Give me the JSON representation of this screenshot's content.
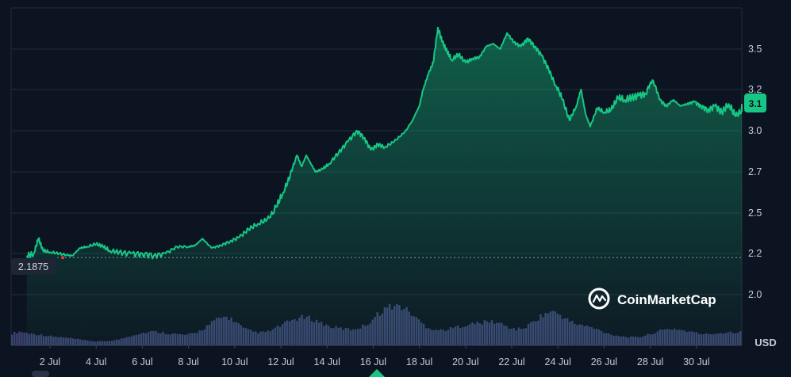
{
  "chart_data": {
    "type": "area",
    "currency_label": "USD",
    "brand": "CoinMarketCap",
    "start_price_label": "2.1875",
    "current_price_label": "3.1",
    "y_ticks": [
      "3.5",
      "3.2",
      "3.0",
      "2.7",
      "2.5",
      "2.2",
      "2.0"
    ],
    "x_ticks": [
      "2 Jul",
      "4 Jul",
      "6 Jul",
      "8 Jul",
      "10 Jul",
      "12 Jul",
      "14 Jul",
      "16 Jul",
      "18 Jul",
      "20 Jul",
      "22 Jul",
      "24 Jul",
      "26 Jul",
      "28 Jul",
      "30 Jul"
    ],
    "ylim": [
      1.8,
      3.75
    ],
    "xlim": [
      0,
      31.2
    ],
    "grid": true,
    "colors": {
      "line": "#16c784",
      "fill_top": "#16c784",
      "background": "#0d1421",
      "grid": "#222b3a",
      "volume": "#3a4470",
      "badge": "#16c784",
      "start_dot": "#ea3943"
    },
    "series": [
      {
        "x": [
          0,
          0.3,
          0.5,
          0.7,
          1.0,
          1.4,
          1.8,
          2.0,
          2.3,
          2.6,
          3.0,
          3.3,
          3.6,
          4.0,
          4.5,
          5.0,
          5.5,
          6.0,
          6.5,
          7.0,
          7.3,
          7.6,
          8.0,
          8.4,
          8.8,
          9.2,
          9.6,
          10.0,
          10.4,
          10.8,
          11.1,
          11.4,
          11.7,
          11.9,
          12.1,
          12.3,
          12.5,
          12.8,
          13.1,
          13.5,
          13.9,
          14.3,
          14.6,
          14.9,
          15.2,
          15.5,
          15.9,
          16.3,
          16.7,
          17.0,
          17.2,
          17.4,
          17.6,
          17.8,
          18.0,
          18.2,
          18.4,
          18.7,
          19.0,
          19.3,
          19.6,
          19.9,
          20.2,
          20.5,
          20.8,
          21.1,
          21.4,
          21.7,
          22.0,
          22.3,
          22.6,
          22.9,
          23.2,
          23.5,
          23.8,
          24.0,
          24.2,
          24.4,
          24.7,
          25.0,
          25.3,
          25.6,
          25.9,
          26.2,
          26.5,
          26.8,
          27.1,
          27.4,
          27.7,
          28.0,
          28.3,
          28.6,
          28.9,
          29.2,
          29.5,
          29.8,
          30.1,
          30.4,
          30.7,
          31.0,
          31.2
        ],
        "y": [
          2.19,
          2.2,
          2.31,
          2.22,
          2.21,
          2.2,
          2.19,
          2.19,
          2.24,
          2.25,
          2.27,
          2.25,
          2.22,
          2.21,
          2.2,
          2.2,
          2.19,
          2.2,
          2.25,
          2.25,
          2.26,
          2.31,
          2.24,
          2.26,
          2.29,
          2.32,
          2.38,
          2.42,
          2.45,
          2.53,
          2.6,
          2.68,
          2.82,
          2.74,
          2.82,
          2.76,
          2.7,
          2.72,
          2.76,
          2.84,
          2.92,
          3.0,
          2.95,
          2.86,
          2.9,
          2.88,
          2.92,
          2.98,
          3.05,
          3.12,
          3.22,
          3.32,
          3.4,
          3.66,
          3.55,
          3.48,
          3.42,
          3.46,
          3.4,
          3.43,
          3.44,
          3.52,
          3.54,
          3.5,
          3.62,
          3.55,
          3.52,
          3.58,
          3.52,
          3.45,
          3.35,
          3.23,
          3.15,
          3.05,
          3.12,
          3.2,
          3.08,
          3.02,
          3.11,
          3.09,
          3.1,
          3.16,
          3.15,
          3.16,
          3.17,
          3.18,
          3.27,
          3.15,
          3.12,
          3.15,
          3.12,
          3.13,
          3.14,
          3.12,
          3.1,
          3.12,
          3.09,
          3.13,
          3.07,
          3.1,
          3.12
        ]
      }
    ],
    "volume": [
      0.3,
      0.35,
      0.3,
      0.28,
      0.25,
      0.22,
      0.2,
      0.18,
      0.15,
      0.12,
      0.1,
      0.1,
      0.12,
      0.15,
      0.22,
      0.28,
      0.32,
      0.35,
      0.33,
      0.3,
      0.28,
      0.26,
      0.3,
      0.4,
      0.55,
      0.68,
      0.72,
      0.6,
      0.42,
      0.35,
      0.32,
      0.35,
      0.45,
      0.55,
      0.65,
      0.7,
      0.68,
      0.6,
      0.5,
      0.45,
      0.42,
      0.4,
      0.45,
      0.55,
      0.75,
      0.92,
      1.0,
      0.98,
      0.85,
      0.65,
      0.48,
      0.4,
      0.38,
      0.42,
      0.48,
      0.52,
      0.55,
      0.58,
      0.6,
      0.55,
      0.45,
      0.4,
      0.45,
      0.6,
      0.75,
      0.85,
      0.8,
      0.65,
      0.55,
      0.5,
      0.45,
      0.38,
      0.3,
      0.25,
      0.22,
      0.2,
      0.22,
      0.28,
      0.35,
      0.4,
      0.42,
      0.38,
      0.34,
      0.3,
      0.28,
      0.3,
      0.32,
      0.34,
      0.33
    ]
  }
}
